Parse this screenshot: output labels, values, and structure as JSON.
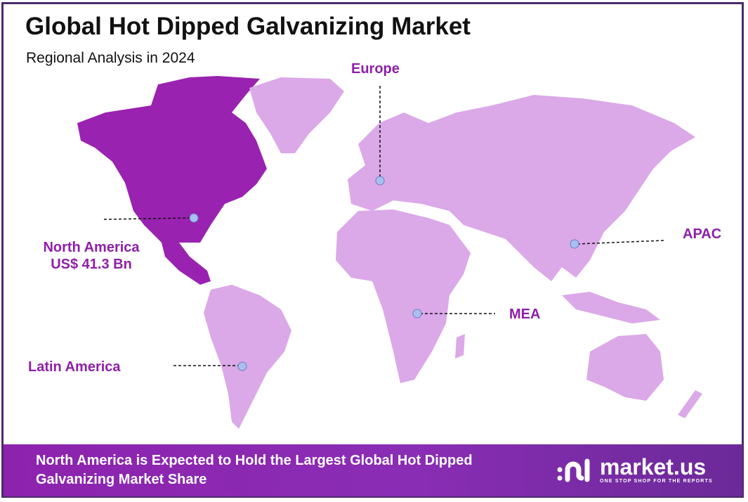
{
  "header": {
    "title": "Global Hot Dipped Galvanizing Market",
    "subtitle": "Regional Analysis in 2024"
  },
  "regions": [
    {
      "name": "North America",
      "value": "US$ 41.3 Bn",
      "highlighted": true
    },
    {
      "name": "Europe"
    },
    {
      "name": "APAC"
    },
    {
      "name": "MEA"
    },
    {
      "name": "Latin America"
    }
  ],
  "colors": {
    "highlight": "#9a22b0",
    "land": "#dba8e8",
    "label": "#8e1fa8",
    "marker": "#a9bff0",
    "border": "#4b2a6b"
  },
  "banner": {
    "text": "North America is Expected to Hold the Largest Global Hot Dipped Galvanizing Market Share"
  },
  "logo": {
    "name": "market.us",
    "tagline": "ONE STOP SHOP FOR THE REPORTS"
  }
}
